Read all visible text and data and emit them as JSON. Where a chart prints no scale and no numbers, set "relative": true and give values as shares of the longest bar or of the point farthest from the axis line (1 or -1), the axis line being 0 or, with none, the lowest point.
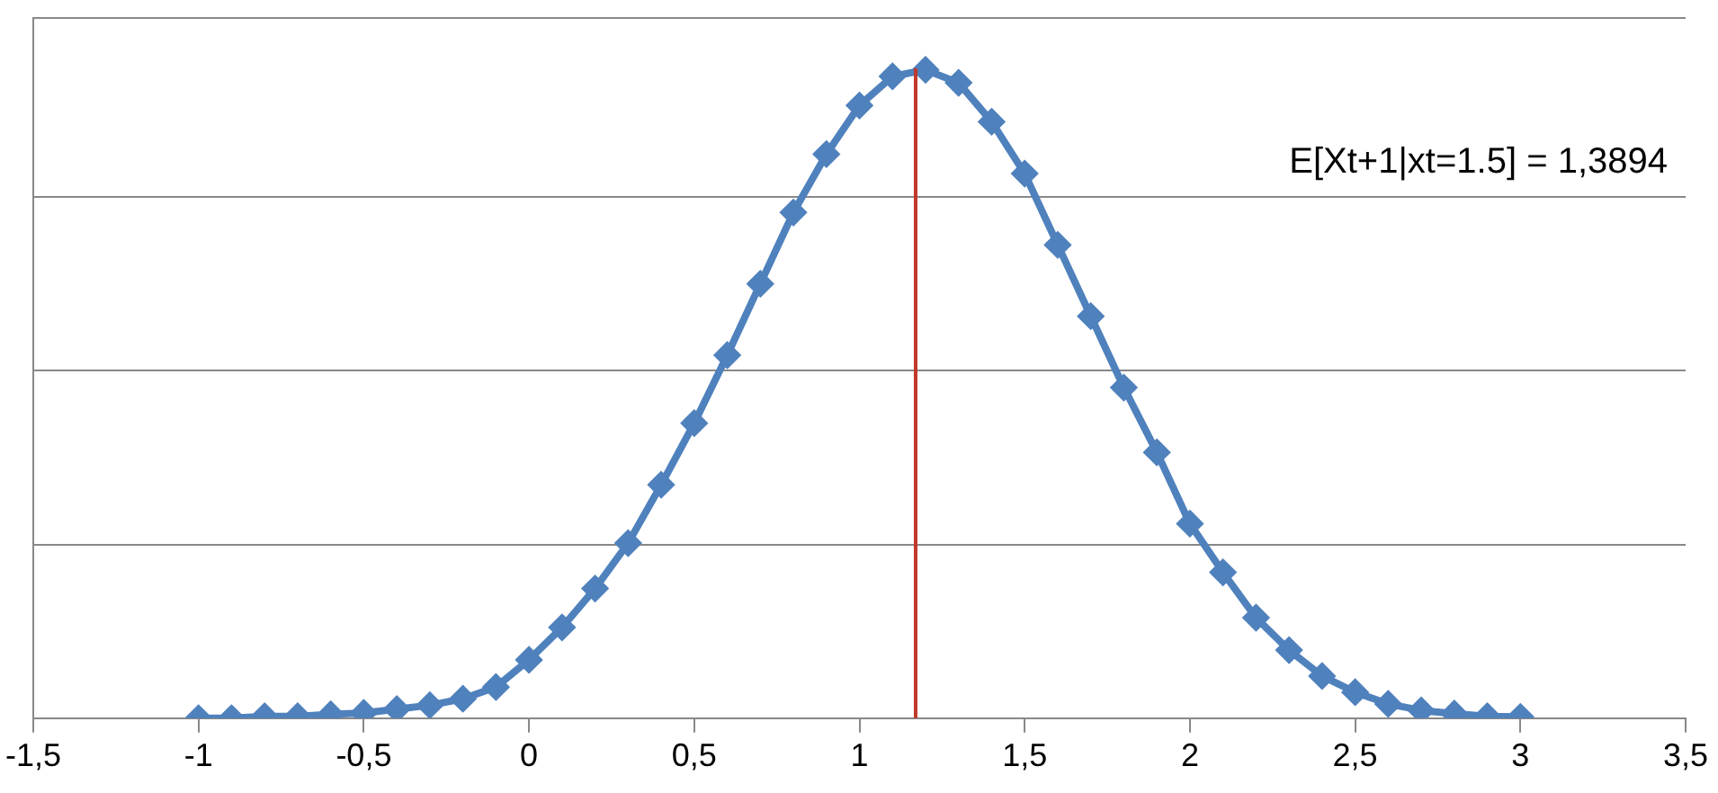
{
  "chart_data": {
    "type": "line",
    "relative": true,
    "marker": "diamond",
    "grid": "y",
    "legend": false,
    "tick_labels": "x",
    "x": [
      -1,
      -0.9,
      -0.8,
      -0.7,
      -0.6,
      -0.5,
      -0.4,
      -0.3,
      -0.2,
      -0.1,
      0,
      0.1,
      0.2,
      0.3,
      0.4,
      0.5,
      0.6,
      0.7,
      0.8,
      0.9,
      1,
      1.1,
      1.2,
      1.3,
      1.4,
      1.5,
      1.6,
      1.7,
      1.8,
      1.9,
      2,
      2.1,
      2.2,
      2.3,
      2.4,
      2.5,
      2.6,
      2.7,
      2.8,
      2.9,
      3
    ],
    "series": [
      {
        "color": "#4f81bd",
        "values": [
          0,
          0,
          0.003,
          0.003,
          0.006,
          0.008,
          0.014,
          0.02,
          0.03,
          0.048,
          0.09,
          0.14,
          0.2,
          0.27,
          0.36,
          0.455,
          0.56,
          0.67,
          0.78,
          0.87,
          0.945,
          0.99,
          1,
          0.98,
          0.92,
          0.84,
          0.73,
          0.62,
          0.51,
          0.41,
          0.3,
          0.225,
          0.155,
          0.105,
          0.065,
          0.04,
          0.022,
          0.012,
          0.007,
          0.003,
          0.002
        ]
      }
    ],
    "xlim": [
      -1.5,
      3.5
    ],
    "xticks": [
      {
        "value": -1.5,
        "label": "-1,5"
      },
      -1,
      {
        "value": -0.5,
        "label": "-0,5"
      },
      0,
      {
        "value": 0.5,
        "label": "0,5"
      },
      1,
      {
        "value": 1.5,
        "label": "1,5"
      },
      2,
      {
        "value": 2.5,
        "label": "2,5"
      },
      3,
      {
        "value": 3.5,
        "label": "3,5"
      }
    ],
    "ref_lines": [
      {
        "axis": "x",
        "value": 1.17,
        "color": "#c0392b"
      }
    ],
    "annotations": [
      "E[Xt+1|xt=1.5] = 1,3894"
    ]
  }
}
